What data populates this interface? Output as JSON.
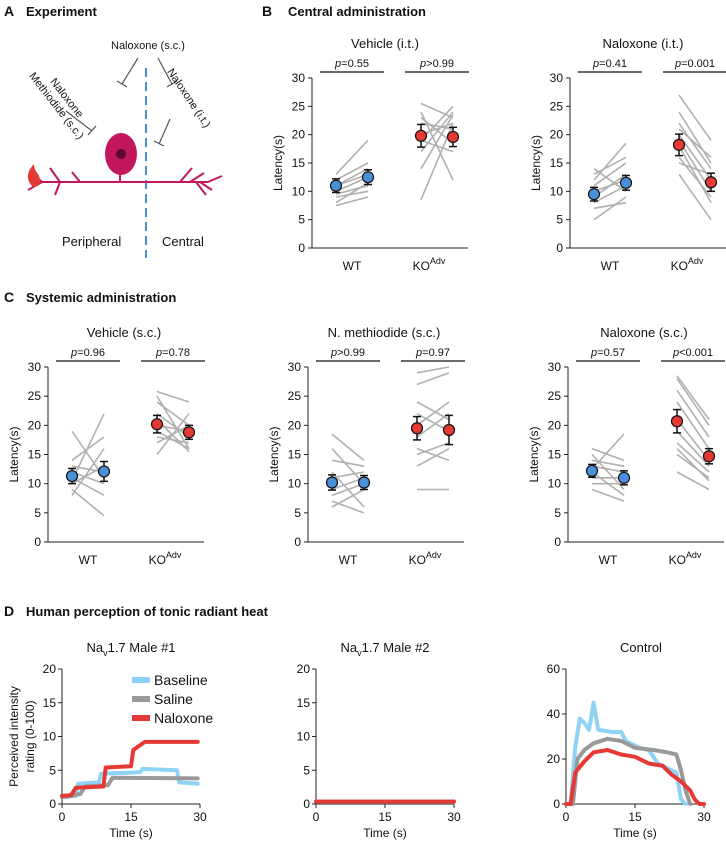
{
  "panel_labels": [
    "A",
    "B",
    "C",
    "D"
  ],
  "sections": {
    "experiment": "Experiment",
    "central": "Central administration",
    "systemic": "Systemic administration",
    "human": "Human perception of tonic radiant heat"
  },
  "diagram": {
    "naloxone_sc": "Naloxone (s.c.)",
    "methiodide_line1": "Naloxone",
    "methiodide_line2": "Methiodide (s.c.)",
    "naloxone_it": "Naloxone (i.t.)",
    "peripheral": "Peripheral",
    "central": "Central",
    "colors": {
      "neuron": "#c2185b",
      "divider": "#4a90d9"
    }
  },
  "p_prefix": "p",
  "colors": {
    "wt": "#4a90d9",
    "ko": "#e53935",
    "line": "#b0b0b0"
  },
  "chart_data": [
    {
      "type": "scatter",
      "title": "Vehicle (i.t.)",
      "ylabel": "Latency(s)",
      "ylim": [
        0,
        30
      ],
      "yticks": [
        0,
        5,
        10,
        15,
        20,
        25,
        30
      ],
      "groups": [
        "WT",
        "KO"
      ],
      "group_sup": [
        "",
        "Adv"
      ],
      "p_values": [
        "=0.55",
        ">0.99"
      ],
      "means": [
        [
          11,
          12.5
        ],
        [
          19.8,
          19.6
        ]
      ],
      "errors": [
        [
          1.2,
          1.3
        ],
        [
          2.0,
          1.7
        ]
      ],
      "individual": [
        [
          [
            7.5,
            9
          ],
          [
            8,
            11.5
          ],
          [
            9,
            10
          ],
          [
            10,
            12.5
          ],
          [
            11,
            13
          ],
          [
            12,
            15
          ],
          [
            13,
            19
          ],
          [
            11,
            14
          ],
          [
            9.5,
            11
          ]
        ],
        [
          [
            8.5,
            22
          ],
          [
            14,
            23.5
          ],
          [
            17,
            24
          ],
          [
            19,
            17
          ],
          [
            22,
            21
          ],
          [
            24,
            12
          ],
          [
            25.5,
            23
          ],
          [
            20,
            22
          ],
          [
            23,
            18.5
          ],
          [
            19,
            25
          ]
        ]
      ]
    },
    {
      "type": "scatter",
      "title": "Naloxone (i.t.)",
      "ylabel": "Latency(s)",
      "ylim": [
        0,
        30
      ],
      "yticks": [
        0,
        5,
        10,
        15,
        20,
        25,
        30
      ],
      "groups": [
        "WT",
        "KO"
      ],
      "group_sup": [
        "",
        "Adv"
      ],
      "p_values": [
        "=0.41",
        "=0.001"
      ],
      "means": [
        [
          9.5,
          11.5
        ],
        [
          18.2,
          11.6
        ]
      ],
      "errors": [
        [
          1.2,
          1.3
        ],
        [
          1.9,
          1.6
        ]
      ],
      "individual": [
        [
          [
            5,
            9
          ],
          [
            7,
            8
          ],
          [
            8,
            11
          ],
          [
            9,
            13
          ],
          [
            10,
            12
          ],
          [
            11,
            15
          ],
          [
            12,
            18.5
          ],
          [
            13,
            16
          ],
          [
            14,
            10
          ]
        ],
        [
          [
            13,
            5
          ],
          [
            16,
            9
          ],
          [
            18,
            8
          ],
          [
            20,
            12
          ],
          [
            22,
            14
          ],
          [
            24,
            15
          ],
          [
            27,
            19
          ],
          [
            19,
            10
          ],
          [
            21,
            16
          ],
          [
            15,
            13
          ]
        ]
      ]
    },
    {
      "type": "scatter",
      "title": "Vehicle (s.c.)",
      "ylabel": "Latency(s)",
      "ylim": [
        0,
        30
      ],
      "yticks": [
        0,
        5,
        10,
        15,
        20,
        25,
        30
      ],
      "groups": [
        "WT",
        "KO"
      ],
      "group_sup": [
        "",
        "Adv"
      ],
      "p_values": [
        "=0.96",
        "=0.78"
      ],
      "means": [
        [
          11.3,
          12.1
        ],
        [
          20.2,
          18.8
        ]
      ],
      "errors": [
        [
          1.3,
          1.7
        ],
        [
          1.5,
          1.2
        ]
      ],
      "individual": [
        [
          [
            8,
            16
          ],
          [
            9,
            4.5
          ],
          [
            10,
            13
          ],
          [
            11,
            8
          ],
          [
            12,
            10
          ],
          [
            13,
            12
          ],
          [
            19,
            11
          ],
          [
            14,
            18
          ],
          [
            10.5,
            22
          ]
        ],
        [
          [
            15,
            22
          ],
          [
            17,
            20
          ],
          [
            18,
            17
          ],
          [
            19,
            16
          ],
          [
            21,
            15.5
          ],
          [
            22,
            18
          ],
          [
            24,
            20
          ],
          [
            25,
            16
          ],
          [
            25.8,
            24
          ],
          [
            20,
            19
          ]
        ]
      ]
    },
    {
      "type": "scatter",
      "title": "N. methiodide (s.c.)",
      "ylabel": "Latency(s)",
      "ylim": [
        0,
        30
      ],
      "yticks": [
        0,
        5,
        10,
        15,
        20,
        25,
        30
      ],
      "groups": [
        "WT",
        "KO"
      ],
      "group_sup": [
        "",
        "Adv"
      ],
      "p_values": [
        ">0.99",
        "=0.97"
      ],
      "means": [
        [
          10.2,
          10.2
        ],
        [
          19.5,
          19.2
        ]
      ],
      "errors": [
        [
          1.3,
          1.2
        ],
        [
          2.0,
          2.5
        ]
      ],
      "individual": [
        [
          [
            6,
            9
          ],
          [
            7,
            5
          ],
          [
            8,
            10
          ],
          [
            9,
            11
          ],
          [
            11,
            12
          ],
          [
            12,
            6
          ],
          [
            14,
            13
          ],
          [
            16,
            10
          ],
          [
            18.5,
            14
          ]
        ],
        [
          [
            9,
            9
          ],
          [
            13,
            16
          ],
          [
            16,
            14
          ],
          [
            18,
            22
          ],
          [
            20,
            24
          ],
          [
            22,
            19
          ],
          [
            24,
            21
          ],
          [
            27,
            29
          ],
          [
            29,
            30
          ],
          [
            15,
            17
          ]
        ]
      ]
    },
    {
      "type": "scatter",
      "title": "Naloxone (s.c.)",
      "ylabel": "Latency(s)",
      "ylim": [
        0,
        30
      ],
      "yticks": [
        0,
        5,
        10,
        15,
        20,
        25,
        30
      ],
      "groups": [
        "WT",
        "KO"
      ],
      "group_sup": [
        "",
        "Adv"
      ],
      "p_values": [
        "=0.57",
        "<0.001"
      ],
      "means": [
        [
          12.2,
          11.0
        ],
        [
          20.7,
          14.7
        ]
      ],
      "errors": [
        [
          1.1,
          1.2
        ],
        [
          2.0,
          1.3
        ]
      ],
      "individual": [
        [
          [
            9,
            7
          ],
          [
            10,
            10
          ],
          [
            11,
            11
          ],
          [
            12,
            8
          ],
          [
            13,
            12
          ],
          [
            14,
            13
          ],
          [
            15,
            9
          ],
          [
            16,
            14
          ],
          [
            12.5,
            18.5
          ]
        ],
        [
          [
            12,
            9
          ],
          [
            15,
            11
          ],
          [
            17,
            12
          ],
          [
            19,
            13
          ],
          [
            21,
            14
          ],
          [
            24,
            16
          ],
          [
            26,
            18
          ],
          [
            28,
            20
          ],
          [
            28.5,
            21
          ],
          [
            16,
            10.5
          ]
        ]
      ]
    },
    {
      "type": "line",
      "title_base": "Na",
      "title_sub": "v",
      "title_rest": "1.7 Male #1",
      "xlabel": "Time (s)",
      "ylabel_lines": [
        "Perceived intensity",
        "rating (0-100)"
      ],
      "xlim": [
        0,
        30
      ],
      "ylim": [
        0,
        20
      ],
      "xticks": [
        0,
        15,
        30
      ],
      "yticks": [
        0,
        5,
        10,
        15,
        20
      ],
      "legend": [
        "Baseline",
        "Saline",
        "Naloxone"
      ],
      "series": [
        {
          "name": "Baseline",
          "color": "#8fd3f4",
          "points": [
            [
              0,
              1
            ],
            [
              3,
              1.2
            ],
            [
              3.5,
              3
            ],
            [
              8,
              3.2
            ],
            [
              8.5,
              4.5
            ],
            [
              17,
              4.7
            ],
            [
              17.5,
              5.2
            ],
            [
              25,
              5
            ],
            [
              25.5,
              3.2
            ],
            [
              29.5,
              3
            ]
          ]
        },
        {
          "name": "Saline",
          "color": "#999999",
          "points": [
            [
              0,
              1
            ],
            [
              4,
              1.5
            ],
            [
              5,
              2.6
            ],
            [
              10,
              2.8
            ],
            [
              11,
              3.9
            ],
            [
              29.5,
              3.8
            ]
          ]
        },
        {
          "name": "Naloxone",
          "color": "#e53935",
          "points": [
            [
              0,
              1.2
            ],
            [
              2,
              1.3
            ],
            [
              3,
              2.4
            ],
            [
              9,
              2.6
            ],
            [
              9.5,
              5.4
            ],
            [
              15,
              5.6
            ],
            [
              15.5,
              8
            ],
            [
              18,
              9.2
            ],
            [
              29.5,
              9.2
            ]
          ]
        }
      ]
    },
    {
      "type": "line",
      "title_base": "Na",
      "title_sub": "v",
      "title_rest": "1.7 Male #2",
      "xlabel": "Time (s)",
      "xlim": [
        0,
        30
      ],
      "ylim": [
        0,
        20
      ],
      "xticks": [
        0,
        15,
        30
      ],
      "yticks": [
        0,
        5,
        10,
        15,
        20
      ],
      "series": [
        {
          "name": "Baseline",
          "color": "#8fd3f4",
          "points": [
            [
              0,
              0.35
            ],
            [
              30,
              0.35
            ]
          ]
        },
        {
          "name": "Saline",
          "color": "#999999",
          "points": [
            [
              0,
              0.35
            ],
            [
              30,
              0.35
            ]
          ]
        },
        {
          "name": "Naloxone",
          "color": "#e53935",
          "points": [
            [
              0,
              0.35
            ],
            [
              30,
              0.35
            ]
          ]
        }
      ]
    },
    {
      "type": "line",
      "title": "Control",
      "xlabel": "Time (s)",
      "xlim": [
        0,
        30
      ],
      "ylim": [
        0,
        60
      ],
      "xticks": [
        0,
        15,
        30
      ],
      "yticks": [
        0,
        20,
        40,
        60
      ],
      "series": [
        {
          "name": "Baseline",
          "color": "#8fd3f4",
          "points": [
            [
              0,
              0
            ],
            [
              1,
              0
            ],
            [
              2,
              25
            ],
            [
              3,
              38
            ],
            [
              4,
              36
            ],
            [
              5,
              33
            ],
            [
              6,
              45
            ],
            [
              7,
              33
            ],
            [
              10,
              32
            ],
            [
              12,
              32
            ],
            [
              13,
              28
            ],
            [
              14,
              27
            ],
            [
              16,
              25
            ],
            [
              18,
              24
            ],
            [
              20,
              18
            ],
            [
              22,
              16
            ],
            [
              24,
              14
            ],
            [
              25,
              2
            ],
            [
              26,
              0
            ]
          ]
        },
        {
          "name": "Saline",
          "color": "#999999",
          "points": [
            [
              0,
              0
            ],
            [
              1.5,
              0
            ],
            [
              2.5,
              20
            ],
            [
              4,
              24
            ],
            [
              6,
              27
            ],
            [
              9,
              29
            ],
            [
              12,
              28
            ],
            [
              15,
              25
            ],
            [
              19,
              24
            ],
            [
              22,
              23
            ],
            [
              24,
              22
            ],
            [
              25,
              15
            ],
            [
              26,
              6
            ],
            [
              27,
              0
            ]
          ]
        },
        {
          "name": "Naloxone",
          "color": "#e53935",
          "points": [
            [
              0,
              0
            ],
            [
              1,
              0
            ],
            [
              2,
              14
            ],
            [
              4,
              19
            ],
            [
              6,
              23
            ],
            [
              9,
              24
            ],
            [
              12,
              22
            ],
            [
              15,
              21
            ],
            [
              18,
              18
            ],
            [
              21,
              17
            ],
            [
              23,
              13
            ],
            [
              25,
              10
            ],
            [
              27,
              6
            ],
            [
              28,
              2
            ],
            [
              29,
              0
            ],
            [
              30,
              0
            ]
          ]
        }
      ]
    }
  ]
}
